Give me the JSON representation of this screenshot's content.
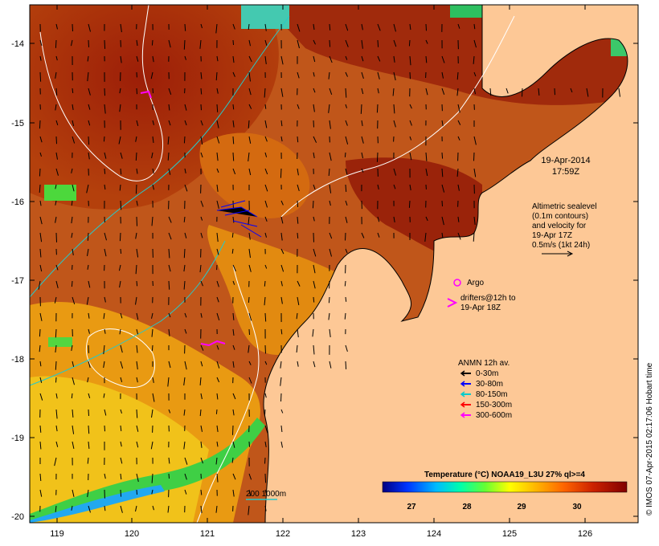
{
  "datetime": {
    "date": "19-Apr-2014",
    "time": "17:59Z"
  },
  "altimetry": {
    "lines": [
      "Altimetric sealevel",
      "(0.1m contours)",
      "and velocity for",
      "19-Apr 17Z",
      "0.5m/s (1kt 24h)"
    ]
  },
  "argo_label": "Argo",
  "drifters": {
    "lines": [
      "drifters@12h to",
      "19-Apr 18Z"
    ]
  },
  "anmn": {
    "title": "ANMN 12h av.",
    "items": [
      {
        "label": "0-30m",
        "color": "#000000"
      },
      {
        "label": "30-80m",
        "color": "#0000ff"
      },
      {
        "label": "80-150m",
        "color": "#00cccc"
      },
      {
        "label": "150-300m",
        "color": "#ff0000"
      },
      {
        "label": "300-600m",
        "color": "#ff00ff"
      }
    ]
  },
  "colorbar": {
    "title": "Temperature (°C) NOAA19_L3U 27% ql>=4",
    "ticks": [
      "27",
      "28",
      "29",
      "30"
    ],
    "colors": [
      "#000080",
      "#0000ff",
      "#0066ff",
      "#00ccff",
      "#00ffcc",
      "#33ff33",
      "#99ff00",
      "#ffff00",
      "#ffcc00",
      "#ff9900",
      "#ff6600",
      "#cc3300",
      "#993300",
      "#800000"
    ]
  },
  "depth_legend": "200  1000m",
  "credit": "© IMOS 07-Apr-2015 02:17:06 Hobart time",
  "axes": {
    "x_ticks": [
      "119",
      "120",
      "121",
      "122",
      "123",
      "124",
      "125",
      "126"
    ],
    "y_ticks": [
      "-14",
      "-15",
      "-16",
      "-17",
      "-18",
      "-19",
      "-20"
    ]
  },
  "colors": {
    "land": "#fdc896",
    "sst_warm": "#a8290c",
    "sst_mid": "#e2870f",
    "sst_cool": "#f3c81a"
  }
}
